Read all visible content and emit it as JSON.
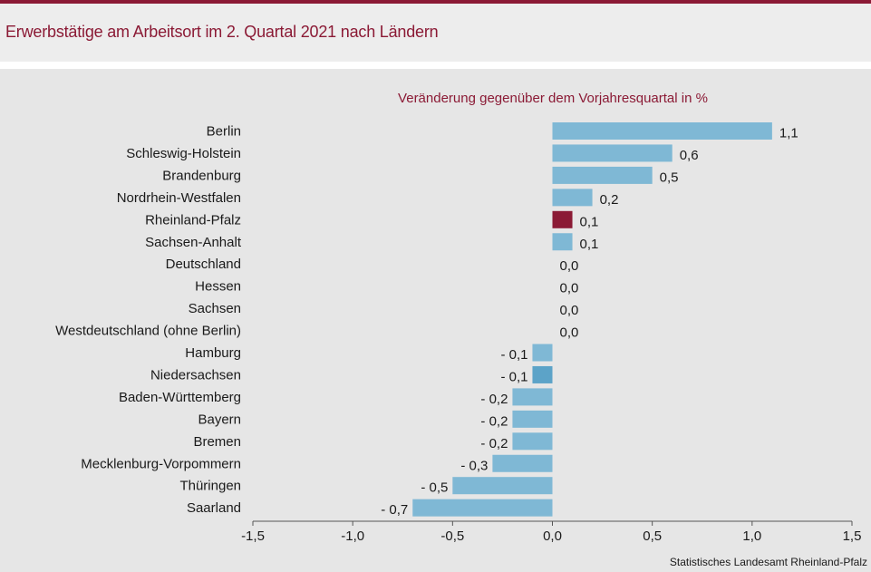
{
  "header": {
    "title": "Erwerbstätige am Arbeitsort im 2. Quartal 2021 nach Ländern"
  },
  "footer": {
    "source": "Statistisches Landesamt Rheinland-Pfalz"
  },
  "colors": {
    "title": "#8b1a35",
    "bar_default": "#7fb8d5",
    "bar_highlight_rlp": "#8b1a35",
    "bar_highlight_nds": "#5ca3c8",
    "background": "#e6e6e6"
  },
  "chart_data": {
    "type": "bar",
    "orientation": "horizontal",
    "title": "Veränderung gegenüber dem Vorjahresquartal in %",
    "xlabel": "",
    "ylabel": "",
    "xlim": [
      -1.5,
      1.5
    ],
    "xticks": [
      -1.5,
      -1.0,
      -0.5,
      0.0,
      0.5,
      1.0,
      1.5
    ],
    "xtick_labels": [
      "-1,5",
      "-1,0",
      "-0,5",
      "0,0",
      "0,5",
      "1,0",
      "1,5"
    ],
    "grid": false,
    "legend": "none",
    "categories": [
      "Berlin",
      "Schleswig-Holstein",
      "Brandenburg",
      "Nordrhein-Westfalen",
      "Rheinland-Pfalz",
      "Sachsen-Anhalt",
      "Deutschland",
      "Hessen",
      "Sachsen",
      "Westdeutschland (ohne Berlin)",
      "Hamburg",
      "Niedersachsen",
      "Baden-Württemberg",
      "Bayern",
      "Bremen",
      "Mecklenburg-Vorpommern",
      "Thüringen",
      "Saarland"
    ],
    "values": [
      1.1,
      0.6,
      0.5,
      0.2,
      0.1,
      0.1,
      0.0,
      0.0,
      0.0,
      0.0,
      -0.1,
      -0.1,
      -0.2,
      -0.2,
      -0.2,
      -0.3,
      -0.5,
      -0.7
    ],
    "value_labels": [
      "1,1",
      "0,6",
      "0,5",
      "0,2",
      "0,1",
      "0,1",
      "0,0",
      "0,0",
      "0,0",
      "0,0",
      "- 0,1",
      "- 0,1",
      "- 0,2",
      "- 0,2",
      "- 0,2",
      "- 0,3",
      "- 0,5",
      "- 0,7"
    ],
    "highlight": {
      "Rheinland-Pfalz": "#8b1a35",
      "Niedersachsen": "#5ca3c8"
    }
  }
}
